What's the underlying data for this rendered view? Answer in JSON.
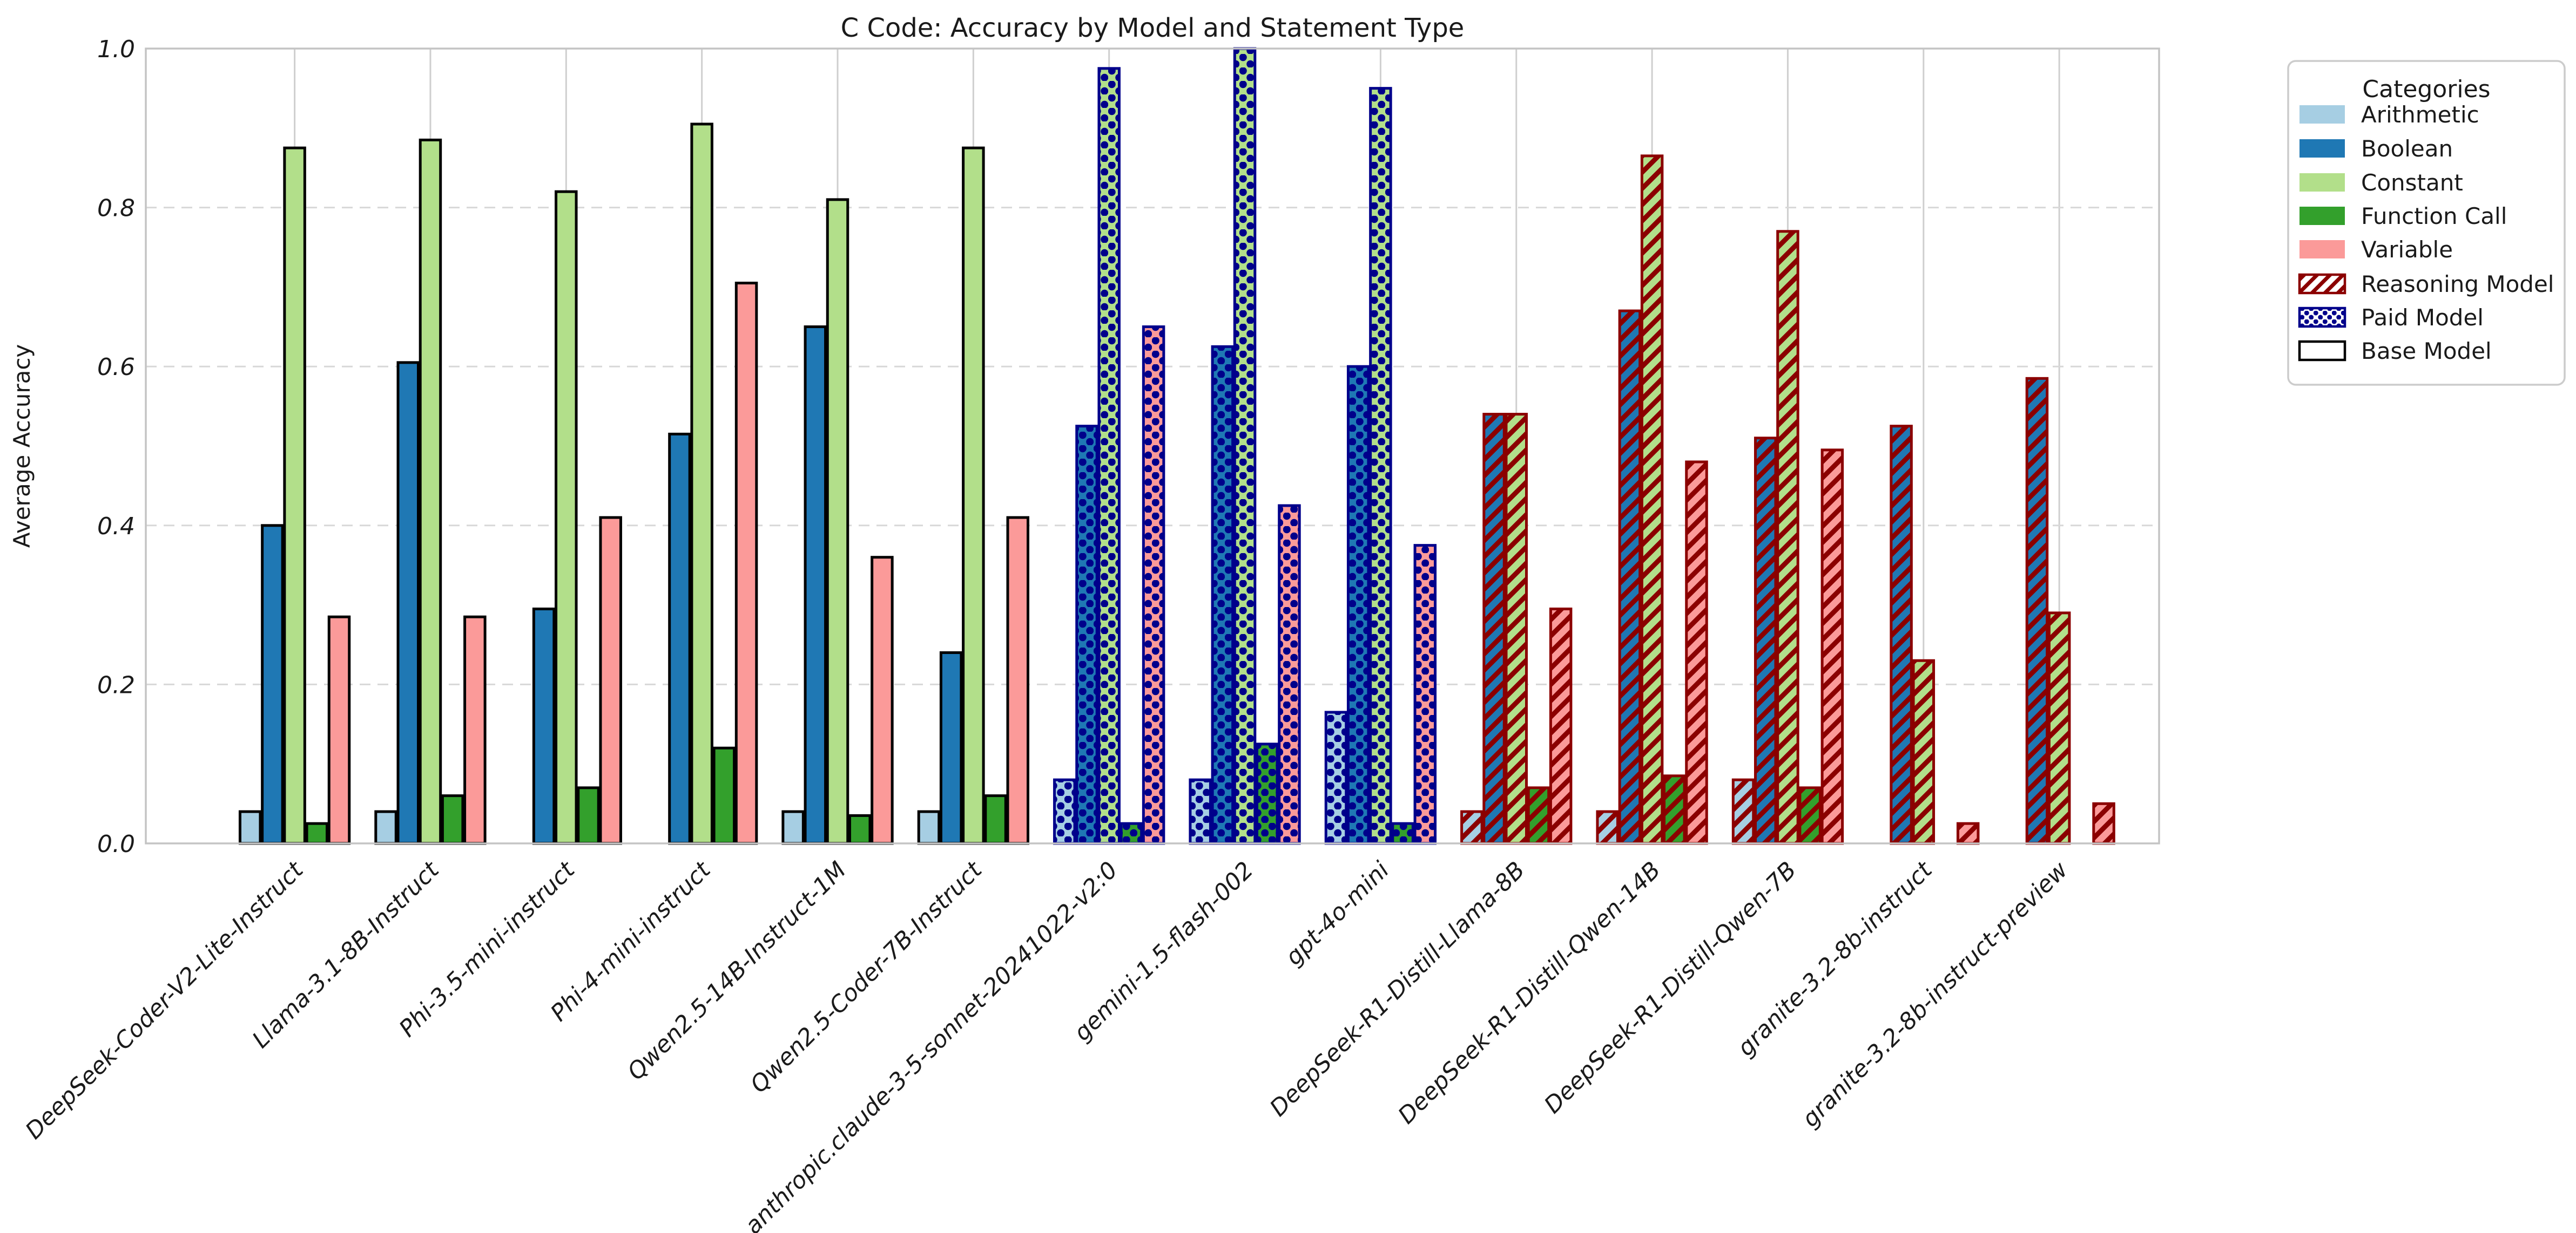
{
  "page": {
    "title": "C Code: Accuracy by Model and Statement Type"
  },
  "chart_data": {
    "type": "bar",
    "title": "C Code: Accuracy by Model and Statement Type",
    "xlabel": "",
    "ylabel": "Average Accuracy",
    "ylim": [
      0.0,
      1.0
    ],
    "yticks": [
      0.0,
      0.2,
      0.4,
      0.6,
      0.8,
      1.0
    ],
    "ytick_labels": [
      "0.0",
      "0.2",
      "0.4",
      "0.6",
      "0.8",
      "1.0"
    ],
    "grid": true,
    "legend_position": "upper right, outside axes",
    "legend_title": "Categories",
    "categories": [
      "Arithmetic",
      "Boolean",
      "Constant",
      "Function Call",
      "Variable"
    ],
    "category_colors": [
      "#a6cee3",
      "#1f78b4",
      "#b2df8a",
      "#33a02c",
      "#fb9a99"
    ],
    "style_legend": [
      {
        "label": "Reasoning Model",
        "pattern": "hatch",
        "color": "#8b0000"
      },
      {
        "label": "Paid Model",
        "pattern": "dots",
        "color": "#00008b"
      },
      {
        "label": "Base Model",
        "pattern": "none",
        "color": "#000000"
      }
    ],
    "edge_colors": {
      "base": "#000000",
      "paid": "#00008b",
      "reasoning": "#8b0000"
    },
    "grid_color": "#cccccc",
    "frame_color": "#c4c4c4",
    "models": [
      {
        "name": "DeepSeek-Coder-V2-Lite-Instruct",
        "group": "base",
        "values": [
          0.04,
          0.4,
          0.875,
          0.025,
          0.285
        ]
      },
      {
        "name": "Llama-3.1-8B-Instruct",
        "group": "base",
        "values": [
          0.04,
          0.605,
          0.885,
          0.06,
          0.285
        ]
      },
      {
        "name": "Phi-3.5-mini-instruct",
        "group": "base",
        "values": [
          0.0,
          0.295,
          0.82,
          0.07,
          0.41
        ]
      },
      {
        "name": "Phi-4-mini-instruct",
        "group": "base",
        "values": [
          0.0,
          0.515,
          0.905,
          0.12,
          0.705
        ]
      },
      {
        "name": "Qwen2.5-14B-Instruct-1M",
        "group": "base",
        "values": [
          0.04,
          0.65,
          0.81,
          0.035,
          0.36
        ]
      },
      {
        "name": "Qwen2.5-Coder-7B-Instruct",
        "group": "base",
        "values": [
          0.04,
          0.24,
          0.875,
          0.06,
          0.41
        ]
      },
      {
        "name": "anthropic.claude-3-5-sonnet-20241022-v2:0",
        "group": "paid",
        "values": [
          0.08,
          0.525,
          0.975,
          0.025,
          0.65
        ]
      },
      {
        "name": "gemini-1.5-flash-002",
        "group": "paid",
        "values": [
          0.08,
          0.625,
          1.0,
          0.125,
          0.425
        ]
      },
      {
        "name": "gpt-4o-mini",
        "group": "paid",
        "values": [
          0.165,
          0.6,
          0.95,
          0.025,
          0.375
        ]
      },
      {
        "name": "DeepSeek-R1-Distill-Llama-8B",
        "group": "reasoning",
        "values": [
          0.04,
          0.54,
          0.54,
          0.07,
          0.295
        ]
      },
      {
        "name": "DeepSeek-R1-Distill-Qwen-14B",
        "group": "reasoning",
        "values": [
          0.04,
          0.67,
          0.865,
          0.085,
          0.48
        ]
      },
      {
        "name": "DeepSeek-R1-Distill-Qwen-7B",
        "group": "reasoning",
        "values": [
          0.08,
          0.51,
          0.77,
          0.07,
          0.495
        ]
      },
      {
        "name": "granite-3.2-8b-instruct",
        "group": "reasoning",
        "values": [
          0.0,
          0.525,
          0.23,
          0.0,
          0.025
        ]
      },
      {
        "name": "granite-3.2-8b-instruct-preview",
        "group": "reasoning",
        "values": [
          0.0,
          0.585,
          0.29,
          0.0,
          0.05
        ]
      }
    ]
  }
}
